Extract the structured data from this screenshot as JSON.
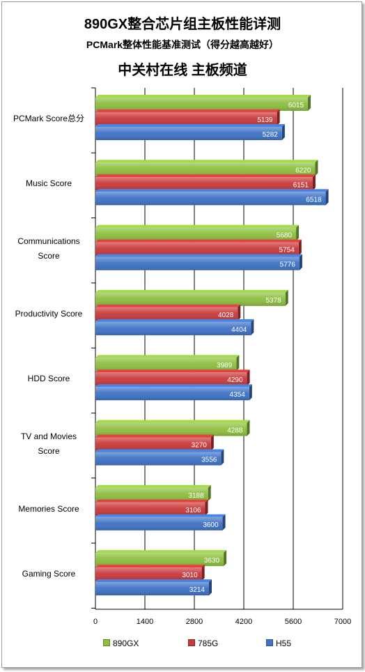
{
  "chart_data": {
    "type": "bar",
    "orientation": "horizontal",
    "title": "890GX整合芯片组主板性能详测",
    "subtitle": "PCMark整体性能基准测试（得分越高越好）",
    "source": "中关村在线 主板频道",
    "categories": [
      "PCMark Score总分",
      "Music Score",
      "Communications Score",
      "Productivity Score",
      "HDD Score",
      "TV and Movies Score",
      "Memories Score",
      "Gaming Score"
    ],
    "series": [
      {
        "name": "890GX",
        "color": "#8dbf3f",
        "values": [
          6015,
          6220,
          5680,
          5378,
          3989,
          4288,
          3188,
          3630
        ]
      },
      {
        "name": "785G",
        "color": "#c9393a",
        "values": [
          5139,
          6151,
          5754,
          4028,
          4290,
          3270,
          3106,
          3010
        ]
      },
      {
        "name": "H55",
        "color": "#3f73c6",
        "values": [
          5282,
          6518,
          5776,
          4404,
          4354,
          3556,
          3600,
          3214
        ]
      }
    ],
    "xlim": [
      0,
      7000
    ],
    "xticks": [
      "0",
      "1400",
      "2800",
      "4200",
      "5600",
      "7000"
    ],
    "grid": true,
    "legend_position": "bottom"
  }
}
